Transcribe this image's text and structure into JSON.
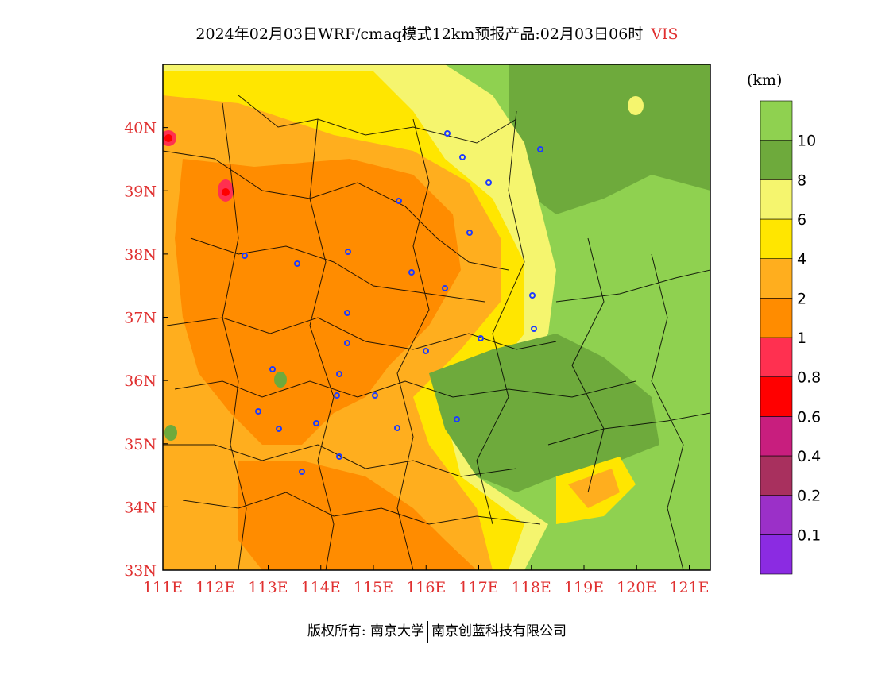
{
  "title": {
    "main": "2024年02月03日WRF/cmaq模式12km预报产品:02月03日06时",
    "variable": "VIS"
  },
  "map_region": {
    "lon_range": [
      111,
      121.4
    ],
    "lat_range": [
      33,
      41
    ],
    "lon_ticks": [
      "111E",
      "112E",
      "113E",
      "114E",
      "115E",
      "116E",
      "117E",
      "118E",
      "119E",
      "120E",
      "121E"
    ],
    "lat_ticks": [
      "33N",
      "34N",
      "35N",
      "36N",
      "37N",
      "38N",
      "39N",
      "40N"
    ]
  },
  "colorbar": {
    "unit": "(km)",
    "levels": [
      "0.1",
      "0.2",
      "0.4",
      "0.6",
      "0.8",
      "1",
      "2",
      "4",
      "6",
      "8",
      "10"
    ],
    "colors": [
      "#8b2be2",
      "#9b30c8",
      "#a8305e",
      "#c81e7e",
      "#ff0000",
      "#ff3050",
      "#ff8c00",
      "#ffae1e",
      "#ffe600",
      "#f5f56e",
      "#6eaa3c",
      "#8fd150"
    ]
  },
  "footer": {
    "copyright": "版权所有: 南京大学",
    "company": "南京创蓝科技有限公司"
  }
}
